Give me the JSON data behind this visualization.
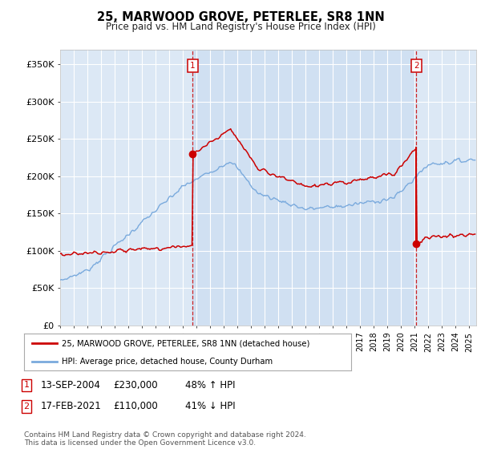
{
  "title": "25, MARWOOD GROVE, PETERLEE, SR8 1NN",
  "subtitle": "Price paid vs. HM Land Registry's House Price Index (HPI)",
  "ylabel_ticks": [
    "£0",
    "£50K",
    "£100K",
    "£150K",
    "£200K",
    "£250K",
    "£300K",
    "£350K"
  ],
  "ytick_values": [
    0,
    50000,
    100000,
    150000,
    200000,
    250000,
    300000,
    350000
  ],
  "ylim": [
    0,
    370000
  ],
  "xlim_start": 1995.0,
  "xlim_end": 2025.5,
  "red_line_color": "#cc0000",
  "blue_line_color": "#7aaadd",
  "marker1_date": 2004.72,
  "marker1_price": 230000,
  "marker2_date": 2021.12,
  "marker2_price": 110000,
  "legend_line1": "25, MARWOOD GROVE, PETERLEE, SR8 1NN (detached house)",
  "legend_line2": "HPI: Average price, detached house, County Durham",
  "ann1_date": "13-SEP-2004",
  "ann1_price": "£230,000",
  "ann1_pct": "48% ↑ HPI",
  "ann2_date": "17-FEB-2021",
  "ann2_price": "£110,000",
  "ann2_pct": "41% ↓ HPI",
  "footer": "Contains HM Land Registry data © Crown copyright and database right 2024.\nThis data is licensed under the Open Government Licence v3.0.",
  "background_color": "#dce8f5",
  "shade_color": "#c8dcf0"
}
